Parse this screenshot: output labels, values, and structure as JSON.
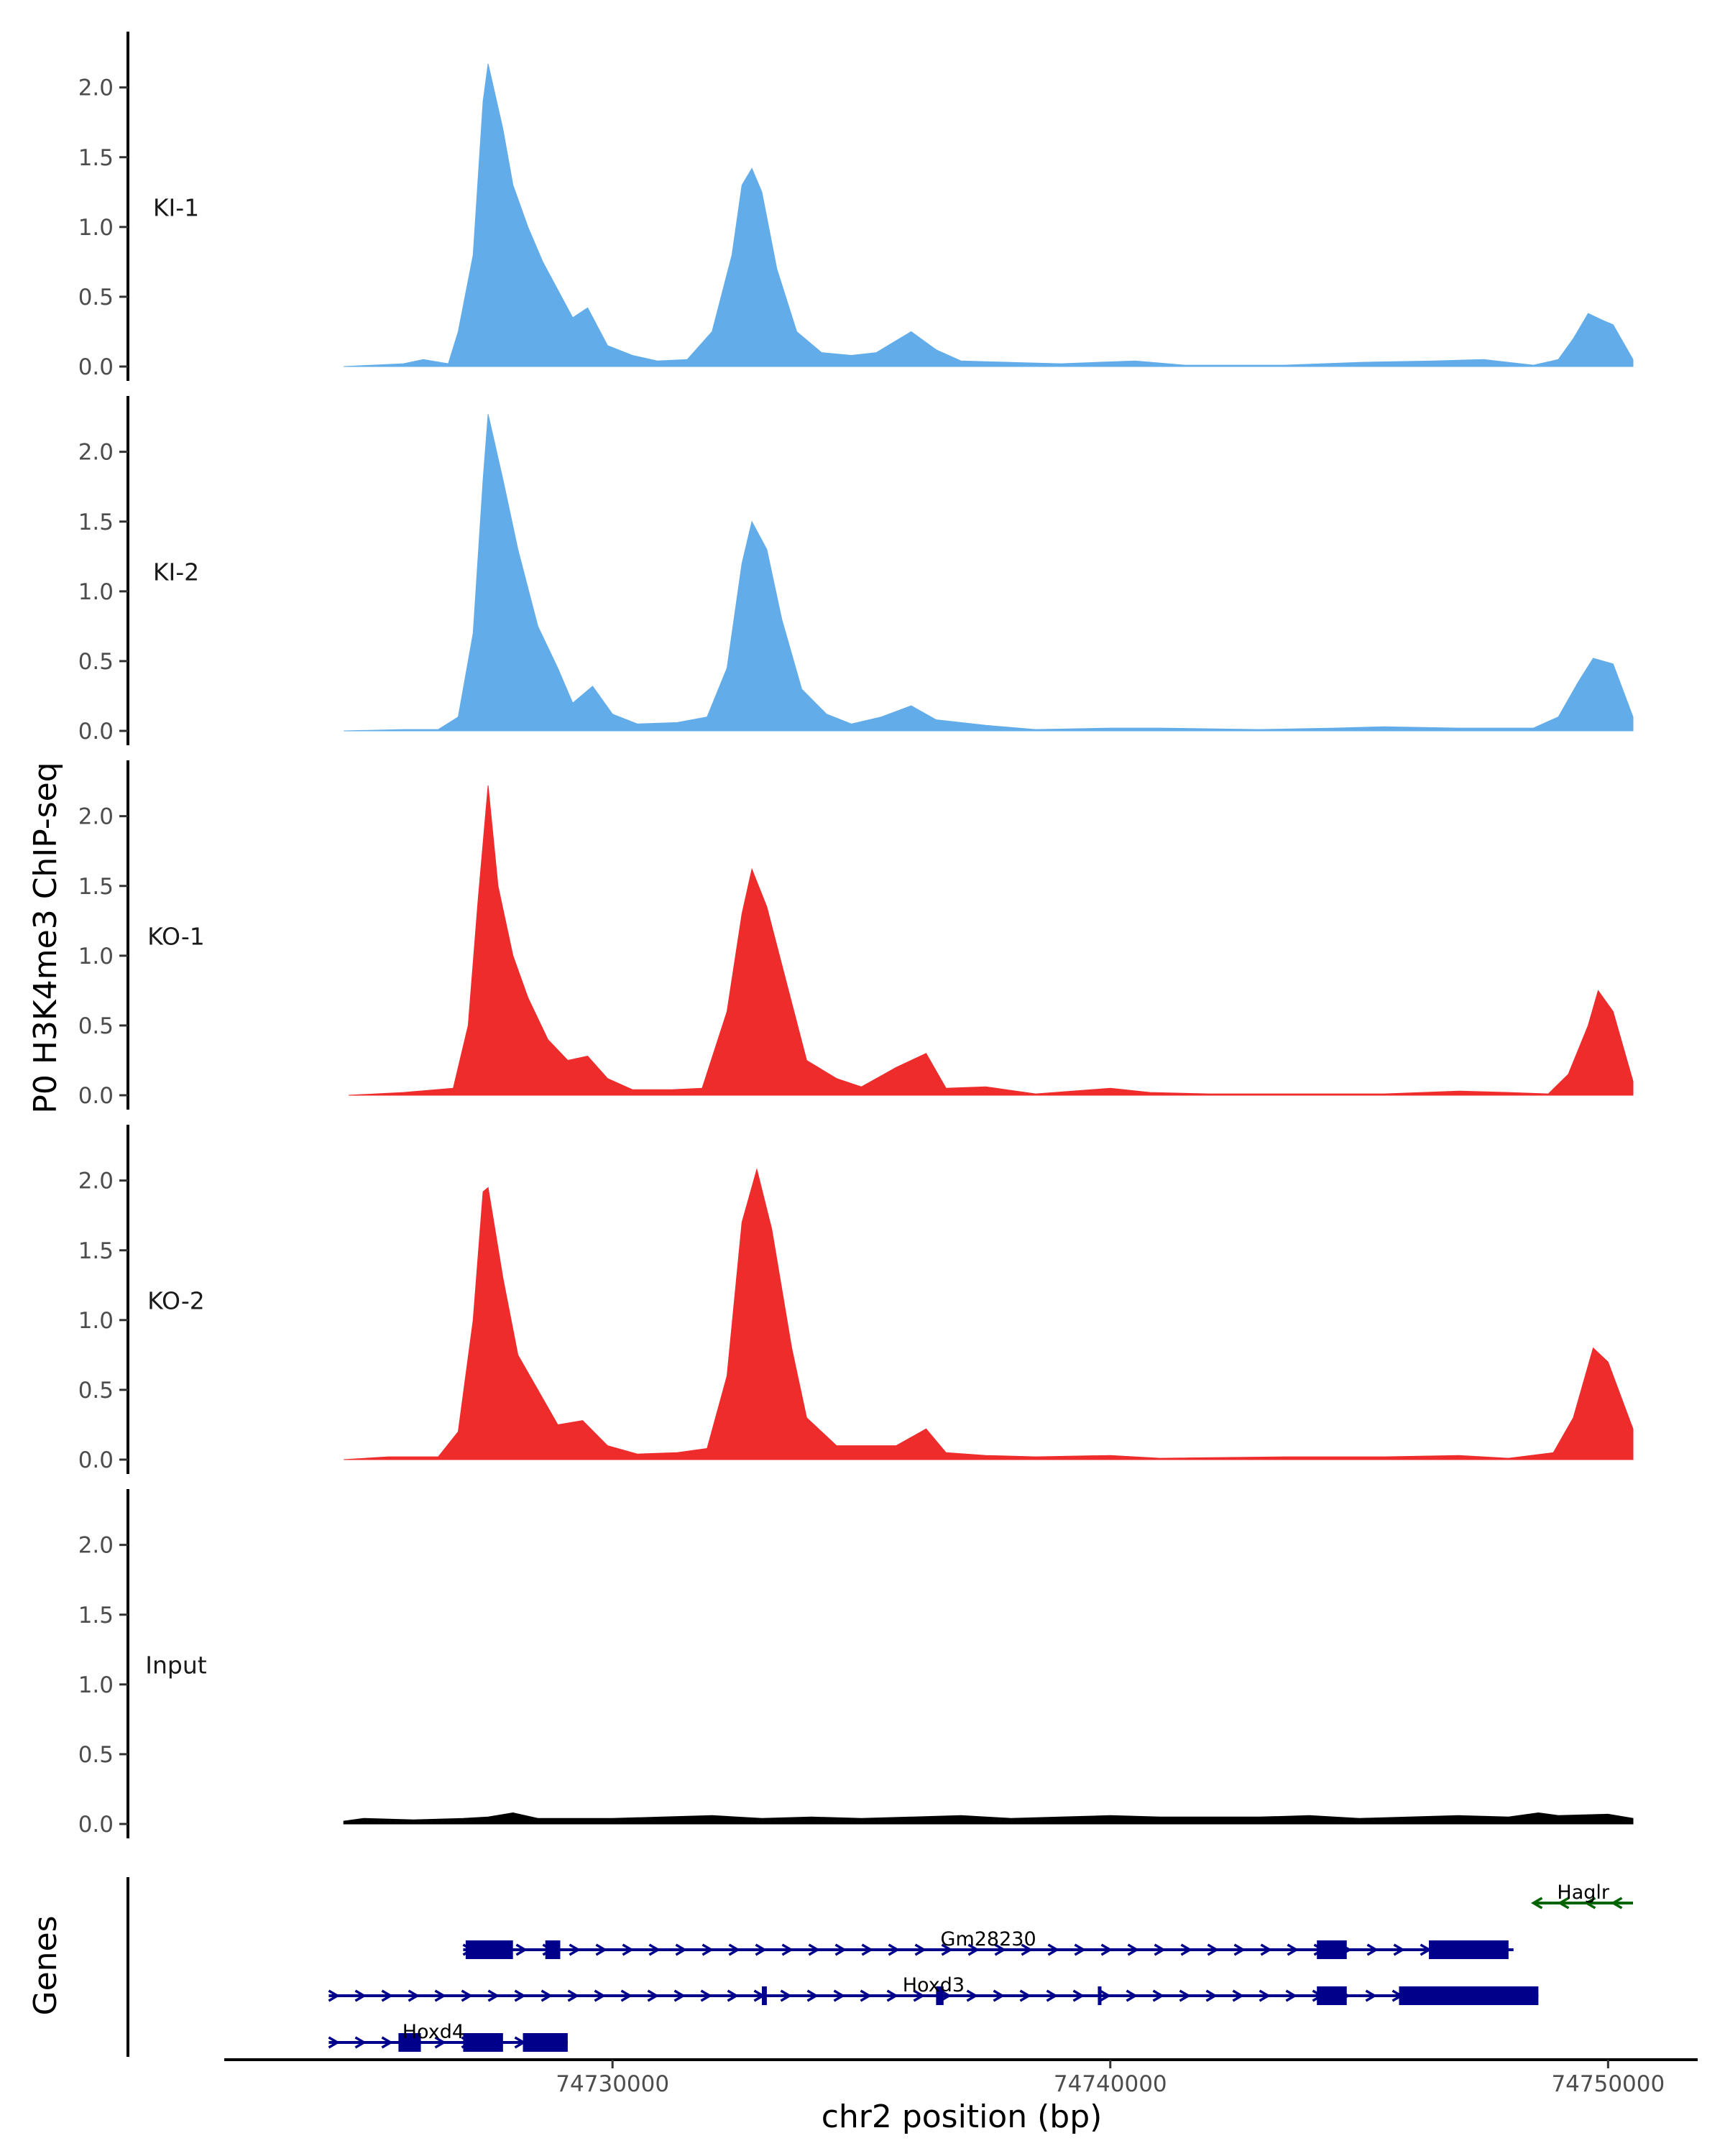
{
  "chart_data": {
    "type": "area",
    "title": "",
    "ylabel": "P0 H3K4me3 ChIP-seq",
    "xlabel": "chr2 position (bp)",
    "xlim": [
      74722200,
      74751800
    ],
    "x_ticks": [
      74730000,
      74740000,
      74750000
    ],
    "x_tick_labels": [
      "74730000",
      "74740000",
      "74750000"
    ],
    "ylim": [
      0,
      2.4
    ],
    "y_ticks": [
      0,
      0.5,
      1,
      1.5,
      2
    ],
    "y_tick_labels": [
      "0.0",
      "0.5",
      "1.0",
      "1.5",
      "2.0"
    ],
    "colors": {
      "KI": "#62ade9",
      "KO": "#ee2c2c",
      "Input": "#000000",
      "gene_plus": "#00008b",
      "gene_minus": "#006400"
    },
    "series": [
      {
        "name": "KI-1",
        "color": "#62ade9",
        "points": [
          [
            74724600,
            0
          ],
          [
            74725800,
            0.02
          ],
          [
            74726200,
            0.05
          ],
          [
            74726700,
            0.02
          ],
          [
            74726900,
            0.25
          ],
          [
            74727200,
            0.8
          ],
          [
            74727400,
            1.9
          ],
          [
            74727500,
            2.17
          ],
          [
            74727800,
            1.7
          ],
          [
            74728000,
            1.3
          ],
          [
            74728300,
            1.0
          ],
          [
            74728600,
            0.75
          ],
          [
            74728900,
            0.55
          ],
          [
            74729200,
            0.35
          ],
          [
            74729500,
            0.42
          ],
          [
            74729900,
            0.15
          ],
          [
            74730400,
            0.08
          ],
          [
            74730900,
            0.04
          ],
          [
            74731500,
            0.05
          ],
          [
            74732000,
            0.25
          ],
          [
            74732400,
            0.8
          ],
          [
            74732600,
            1.3
          ],
          [
            74732800,
            1.42
          ],
          [
            74733000,
            1.25
          ],
          [
            74733300,
            0.7
          ],
          [
            74733700,
            0.25
          ],
          [
            74734200,
            0.1
          ],
          [
            74734800,
            0.08
          ],
          [
            74735300,
            0.1
          ],
          [
            74736000,
            0.25
          ],
          [
            74736500,
            0.12
          ],
          [
            74737000,
            0.04
          ],
          [
            74738000,
            0.03
          ],
          [
            74739000,
            0.02
          ],
          [
            74740500,
            0.04
          ],
          [
            74741500,
            0.01
          ],
          [
            74743500,
            0.01
          ],
          [
            74745000,
            0.03
          ],
          [
            74746500,
            0.04
          ],
          [
            74747500,
            0.05
          ],
          [
            74748500,
            0.01
          ],
          [
            74749000,
            0.05
          ],
          [
            74749300,
            0.2
          ],
          [
            74749600,
            0.38
          ],
          [
            74749900,
            0.33
          ],
          [
            74750100,
            0.3
          ],
          [
            74750500,
            0.05
          ]
        ]
      },
      {
        "name": "KI-2",
        "color": "#62ade9",
        "points": [
          [
            74724600,
            0
          ],
          [
            74725800,
            0.01
          ],
          [
            74726500,
            0.01
          ],
          [
            74726900,
            0.1
          ],
          [
            74727200,
            0.7
          ],
          [
            74727400,
            1.8
          ],
          [
            74727500,
            2.27
          ],
          [
            74727800,
            1.8
          ],
          [
            74728100,
            1.3
          ],
          [
            74728500,
            0.75
          ],
          [
            74728900,
            0.45
          ],
          [
            74729200,
            0.2
          ],
          [
            74729600,
            0.32
          ],
          [
            74730000,
            0.12
          ],
          [
            74730500,
            0.05
          ],
          [
            74731300,
            0.06
          ],
          [
            74731900,
            0.1
          ],
          [
            74732300,
            0.45
          ],
          [
            74732600,
            1.2
          ],
          [
            74732800,
            1.5
          ],
          [
            74733100,
            1.3
          ],
          [
            74733400,
            0.8
          ],
          [
            74733800,
            0.3
          ],
          [
            74734300,
            0.12
          ],
          [
            74734800,
            0.05
          ],
          [
            74735400,
            0.1
          ],
          [
            74736000,
            0.18
          ],
          [
            74736500,
            0.08
          ],
          [
            74737500,
            0.04
          ],
          [
            74738500,
            0.01
          ],
          [
            74740000,
            0.02
          ],
          [
            74741000,
            0.02
          ],
          [
            74743000,
            0.01
          ],
          [
            74744500,
            0.02
          ],
          [
            74745500,
            0.03
          ],
          [
            74747000,
            0.02
          ],
          [
            74748500,
            0.02
          ],
          [
            74749000,
            0.1
          ],
          [
            74749400,
            0.35
          ],
          [
            74749700,
            0.52
          ],
          [
            74750100,
            0.48
          ],
          [
            74750500,
            0.1
          ]
        ]
      },
      {
        "name": "KO-1",
        "color": "#ee2c2c",
        "points": [
          [
            74724700,
            0
          ],
          [
            74725800,
            0.02
          ],
          [
            74726800,
            0.05
          ],
          [
            74727100,
            0.5
          ],
          [
            74727300,
            1.4
          ],
          [
            74727500,
            2.22
          ],
          [
            74727700,
            1.5
          ],
          [
            74728000,
            1.0
          ],
          [
            74728300,
            0.7
          ],
          [
            74728700,
            0.4
          ],
          [
            74729100,
            0.25
          ],
          [
            74729500,
            0.28
          ],
          [
            74729900,
            0.12
          ],
          [
            74730400,
            0.04
          ],
          [
            74731200,
            0.04
          ],
          [
            74731800,
            0.05
          ],
          [
            74732300,
            0.6
          ],
          [
            74732600,
            1.3
          ],
          [
            74732800,
            1.62
          ],
          [
            74733100,
            1.35
          ],
          [
            74733500,
            0.8
          ],
          [
            74733900,
            0.25
          ],
          [
            74734500,
            0.12
          ],
          [
            74735000,
            0.06
          ],
          [
            74735700,
            0.2
          ],
          [
            74736300,
            0.3
          ],
          [
            74736700,
            0.05
          ],
          [
            74737500,
            0.06
          ],
          [
            74738500,
            0.01
          ],
          [
            74740000,
            0.05
          ],
          [
            74740800,
            0.02
          ],
          [
            74742000,
            0.01
          ],
          [
            74743600,
            0.01
          ],
          [
            74745500,
            0.01
          ],
          [
            74747000,
            0.03
          ],
          [
            74748000,
            0.02
          ],
          [
            74748800,
            0.01
          ],
          [
            74749200,
            0.15
          ],
          [
            74749600,
            0.5
          ],
          [
            74749800,
            0.75
          ],
          [
            74750100,
            0.6
          ],
          [
            74750500,
            0.1
          ]
        ]
      },
      {
        "name": "KO-2",
        "color": "#ee2c2c",
        "points": [
          [
            74724600,
            0
          ],
          [
            74725500,
            0.02
          ],
          [
            74726500,
            0.02
          ],
          [
            74726900,
            0.2
          ],
          [
            74727200,
            1.0
          ],
          [
            74727400,
            1.92
          ],
          [
            74727500,
            1.95
          ],
          [
            74727800,
            1.3
          ],
          [
            74728100,
            0.75
          ],
          [
            74728500,
            0.5
          ],
          [
            74728900,
            0.25
          ],
          [
            74729400,
            0.28
          ],
          [
            74729900,
            0.1
          ],
          [
            74730500,
            0.04
          ],
          [
            74731300,
            0.05
          ],
          [
            74731900,
            0.08
          ],
          [
            74732300,
            0.6
          ],
          [
            74732600,
            1.7
          ],
          [
            74732900,
            2.08
          ],
          [
            74733200,
            1.65
          ],
          [
            74733600,
            0.8
          ],
          [
            74733900,
            0.3
          ],
          [
            74734500,
            0.1
          ],
          [
            74735000,
            0.1
          ],
          [
            74735700,
            0.1
          ],
          [
            74736300,
            0.22
          ],
          [
            74736700,
            0.05
          ],
          [
            74737500,
            0.03
          ],
          [
            74738500,
            0.02
          ],
          [
            74740000,
            0.03
          ],
          [
            74741000,
            0.01
          ],
          [
            74743500,
            0.02
          ],
          [
            74745500,
            0.02
          ],
          [
            74747000,
            0.03
          ],
          [
            74748000,
            0.01
          ],
          [
            74748900,
            0.05
          ],
          [
            74749300,
            0.3
          ],
          [
            74749700,
            0.8
          ],
          [
            74750000,
            0.7
          ],
          [
            74750500,
            0.22
          ]
        ]
      },
      {
        "name": "Input",
        "color": "#000000",
        "points": [
          [
            74724600,
            0.02
          ],
          [
            74725000,
            0.04
          ],
          [
            74726000,
            0.03
          ],
          [
            74727000,
            0.04
          ],
          [
            74727500,
            0.05
          ],
          [
            74728000,
            0.08
          ],
          [
            74728500,
            0.04
          ],
          [
            74730000,
            0.04
          ],
          [
            74731000,
            0.05
          ],
          [
            74732000,
            0.06
          ],
          [
            74733000,
            0.04
          ],
          [
            74734000,
            0.05
          ],
          [
            74735000,
            0.04
          ],
          [
            74736000,
            0.05
          ],
          [
            74737000,
            0.06
          ],
          [
            74738000,
            0.04
          ],
          [
            74739000,
            0.05
          ],
          [
            74740000,
            0.06
          ],
          [
            74741000,
            0.05
          ],
          [
            74742000,
            0.05
          ],
          [
            74743000,
            0.05
          ],
          [
            74744000,
            0.06
          ],
          [
            74745000,
            0.04
          ],
          [
            74746000,
            0.05
          ],
          [
            74747000,
            0.06
          ],
          [
            74748000,
            0.05
          ],
          [
            74748600,
            0.08
          ],
          [
            74749000,
            0.06
          ],
          [
            74750000,
            0.07
          ],
          [
            74750500,
            0.04
          ]
        ]
      }
    ],
    "genes_track": {
      "label": "Genes",
      "genes": [
        {
          "name": "Haglr",
          "strand": "-",
          "start": 74748500,
          "end": 74750500,
          "row": 0,
          "exons": []
        },
        {
          "name": "Gm28230",
          "strand": "+",
          "start": 74727000,
          "end": 74748100,
          "row": 1,
          "exons": [
            [
              74727050,
              74728000
            ],
            [
              74728650,
              74728950
            ],
            [
              74744150,
              74744750
            ],
            [
              74746400,
              74748000
            ]
          ]
        },
        {
          "name": "Hoxd3",
          "strand": "+",
          "start": 74724300,
          "end": 74748600,
          "row": 2,
          "exons": [
            [
              74733000,
              74733100
            ],
            [
              74736500,
              74736650
            ],
            [
              74739750,
              74739800
            ],
            [
              74744150,
              74744750
            ],
            [
              74745800,
              74748600
            ]
          ]
        },
        {
          "name": "Hoxd4",
          "strand": "+",
          "start": 74724300,
          "end": 74729100,
          "row": 3,
          "exons": [
            [
              74725700,
              74726150
            ],
            [
              74727000,
              74727800
            ],
            [
              74728200,
              74729100
            ]
          ]
        }
      ]
    }
  }
}
